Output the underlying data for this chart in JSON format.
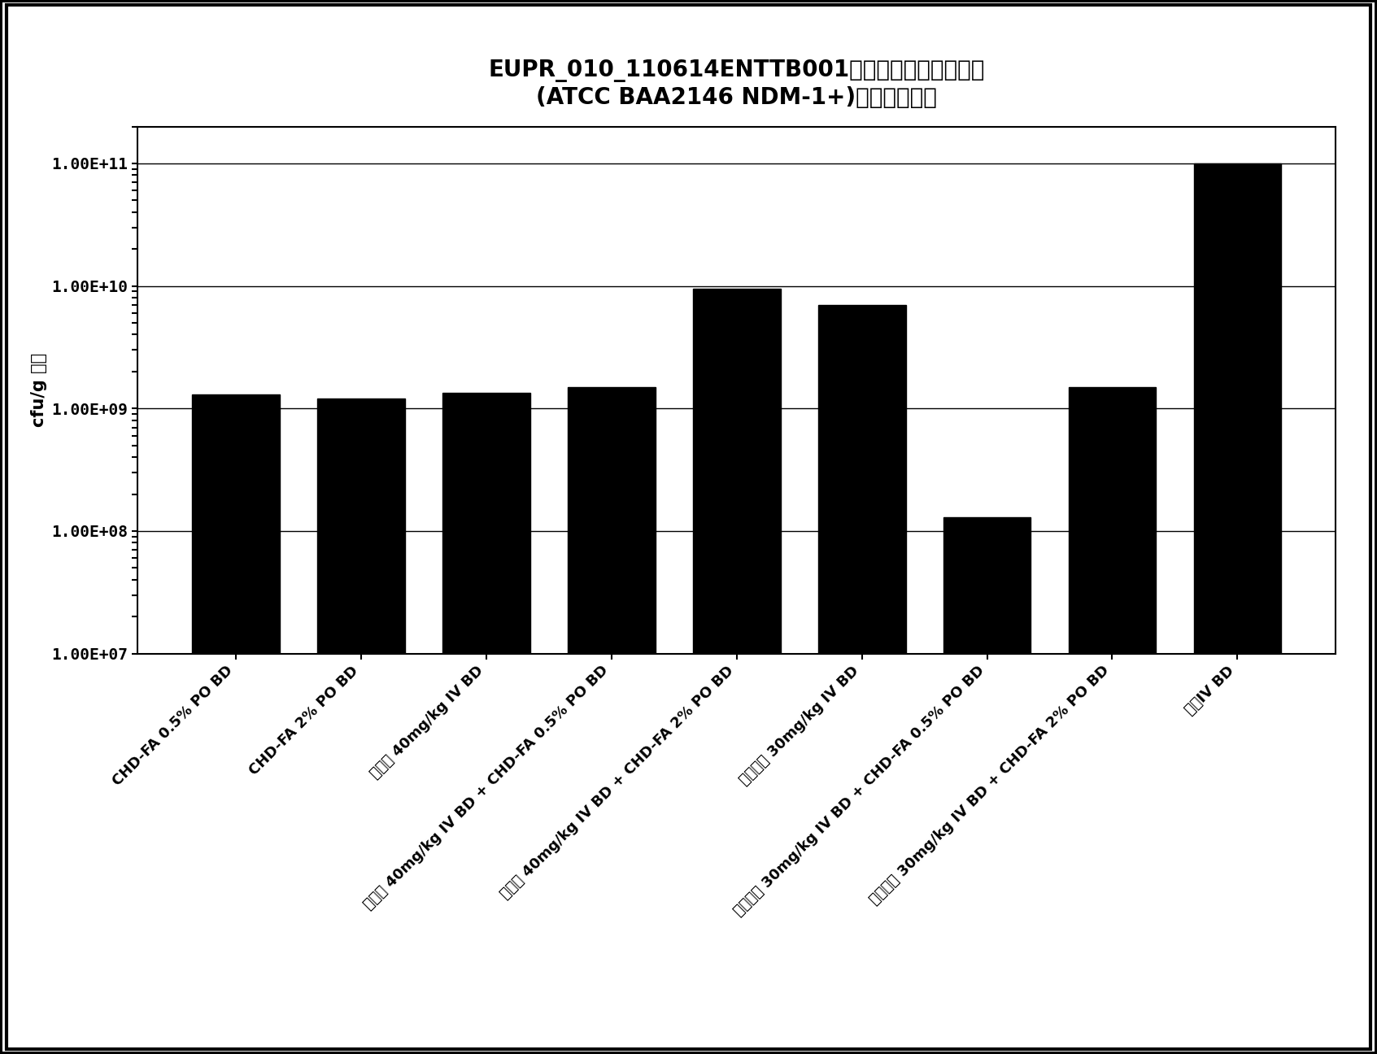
{
  "title_line1": "EUPR_010_110614ENTTB001局部感染肺炎克雷伯菌",
  "title_line2": "(ATCC BAA2146 NDM-1+)后的大量荷载",
  "ylabel": "cfu/g 大量",
  "categories": [
    "CHD-FA 0.5% PO BD",
    "CHD-FA 2% PO BD",
    "粘菌素 40mg/kg IV BD",
    "粘菌素 40mg/kg IV BD + CHD-FA 0.5% PO BD",
    "粘菌素 40mg/kg IV BD + CHD-FA 2% PO BD",
    "美罗培南 30mg/kg IV BD",
    "美罗培南 30mg/kg IV BD + CHD-FA 0.5% PO BD",
    "美罗培南 30mg/kg IV BD + CHD-FA 2% PO BD",
    "媒介IV BD"
  ],
  "values": [
    1300000000.0,
    1200000000.0,
    1350000000.0,
    1500000000.0,
    9500000000.0,
    7000000000.0,
    130000000.0,
    1500000000.0,
    100000000000.0
  ],
  "bar_color": "#000000",
  "ylim_min": 10000000.0,
  "ylim_max": 200000000000.0,
  "title_fontsize": 20,
  "axis_label_fontsize": 15,
  "tick_fontsize": 14,
  "xtick_fontsize": 13,
  "background_color": "#ffffff",
  "yticks": [
    10000000.0,
    100000000.0,
    1000000000.0,
    10000000000.0,
    100000000000.0
  ],
  "ytick_labels": [
    "1.00E+07",
    "1.00E+08",
    "1.00E+09",
    "1.00E+10",
    "1.00E+11"
  ]
}
